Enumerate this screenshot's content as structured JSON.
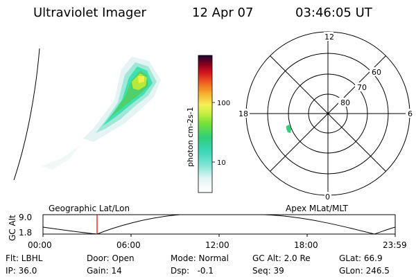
{
  "header": {
    "title": "Ultraviolet Imager",
    "date": "12 Apr 07",
    "time": "03:46:05 UT"
  },
  "colorbar": {
    "label": "photon cm-2s-1",
    "ticks": [
      "100",
      "10"
    ]
  },
  "polar": {
    "mlt_labels": [
      "12",
      "18",
      "6",
      "0"
    ],
    "lat_labels": [
      "60",
      "70",
      "80"
    ]
  },
  "timeline": {
    "left_label": "Geographic Lat/Lon",
    "right_label": "Apex MLat/MLT",
    "axis_title": "GC Alt",
    "y_ticks": [
      "9.0",
      "1.8"
    ],
    "x_ticks": [
      "00:00",
      "06:00",
      "12:00",
      "18:00",
      "23:59"
    ],
    "marker_color": "#e00000"
  },
  "footer": {
    "row1": [
      "Flt: LBHL",
      "Door: Open",
      "Mode: Normal",
      "GC Alt: 2.0 Re",
      "GLat: 66.9"
    ],
    "row2": [
      "IP: 36.0",
      "Gain: 14",
      "Dsp:   -0.1",
      "Seq: 39",
      "GLon: 246.5"
    ]
  }
}
